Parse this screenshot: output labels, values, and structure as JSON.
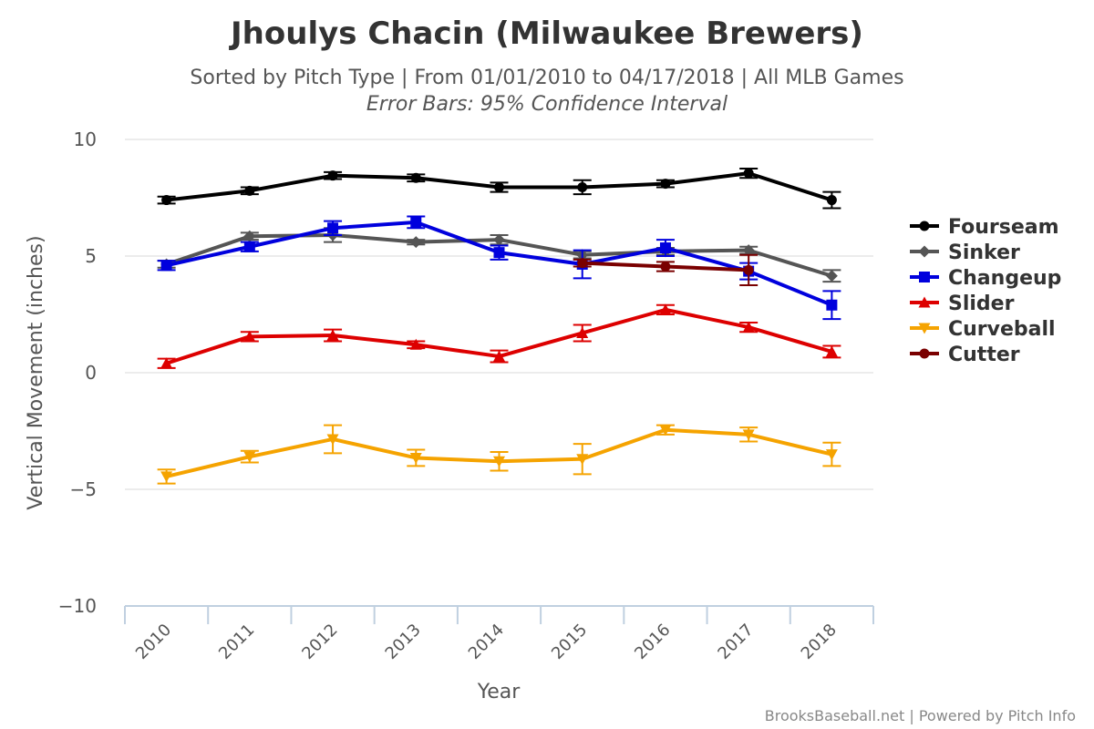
{
  "chart_data": {
    "type": "line",
    "title": "Jhoulys Chacin (Milwaukee Brewers)",
    "subtitle": "Sorted by Pitch Type | From 01/01/2010 to 04/17/2018 | All MLB Games",
    "subtitle2": "Error Bars: 95% Confidence Interval",
    "xlabel": "Year",
    "ylabel": "Vertical Movement (inches)",
    "categories": [
      "2010",
      "2011",
      "2012",
      "2013",
      "2014",
      "2015",
      "2016",
      "2017",
      "2018"
    ],
    "ylim": [
      -10,
      10
    ],
    "yticks": [
      10,
      5,
      0,
      -5,
      -10
    ],
    "yticklabels": [
      "10",
      "5",
      "0",
      "−5",
      "−10"
    ],
    "grid": true,
    "legend_position": "right",
    "credits": "BrooksBaseball.net | Powered by Pitch Info",
    "series": [
      {
        "name": "Fourseam",
        "color": "#000000",
        "marker": "circle",
        "values": [
          7.4,
          7.8,
          8.45,
          8.35,
          7.95,
          7.95,
          8.1,
          8.55,
          7.4
        ],
        "err": [
          0.15,
          0.15,
          0.15,
          0.15,
          0.2,
          0.3,
          0.15,
          0.2,
          0.35
        ]
      },
      {
        "name": "Sinker",
        "color": "#555555",
        "marker": "diamond",
        "values": [
          4.65,
          5.85,
          5.9,
          5.6,
          5.7,
          5.05,
          5.2,
          5.25,
          4.15
        ],
        "err": [
          0.15,
          0.15,
          0.3,
          0.1,
          0.2,
          0.15,
          0.15,
          0.15,
          0.25
        ]
      },
      {
        "name": "Changeup",
        "color": "#0000dd",
        "marker": "square",
        "values": [
          4.6,
          5.4,
          6.2,
          6.45,
          5.15,
          4.65,
          5.35,
          4.35,
          2.9
        ],
        "err": [
          0.2,
          0.2,
          0.3,
          0.25,
          0.3,
          0.6,
          0.35,
          0.35,
          0.6
        ]
      },
      {
        "name": "Slider",
        "color": "#dd0000",
        "marker": "triangle-up",
        "values": [
          0.4,
          1.55,
          1.6,
          1.2,
          0.7,
          1.7,
          2.7,
          1.95,
          0.9
        ],
        "err": [
          0.2,
          0.2,
          0.25,
          0.15,
          0.25,
          0.35,
          0.2,
          0.2,
          0.25
        ]
      },
      {
        "name": "Curveball",
        "color": "#f5a300",
        "marker": "triangle-down",
        "values": [
          -4.45,
          -3.6,
          -2.85,
          -3.65,
          -3.8,
          -3.7,
          -2.45,
          -2.65,
          -3.5
        ],
        "err": [
          0.3,
          0.25,
          0.6,
          0.35,
          0.4,
          0.65,
          0.2,
          0.3,
          0.5
        ]
      },
      {
        "name": "Cutter",
        "color": "#7a0000",
        "marker": "circle",
        "values": [
          null,
          null,
          null,
          null,
          null,
          4.7,
          4.55,
          4.4,
          null
        ],
        "err": [
          null,
          null,
          null,
          null,
          null,
          0.15,
          0.2,
          0.65,
          null
        ]
      }
    ]
  }
}
